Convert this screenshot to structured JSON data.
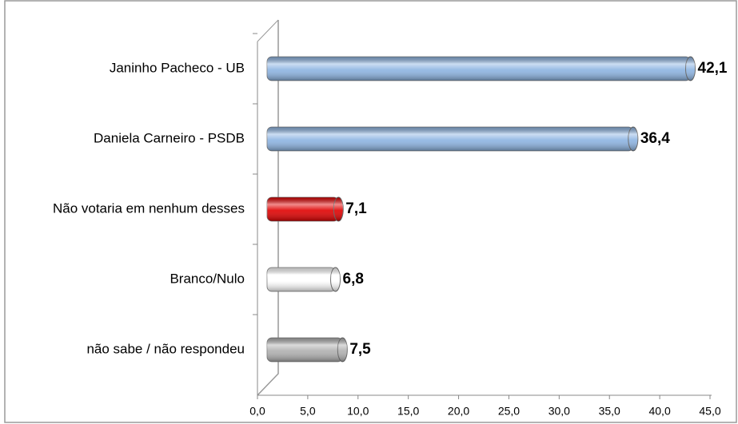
{
  "chart_data": {
    "type": "bar",
    "orientation": "horizontal",
    "categories": [
      "Janinho Pacheco - UB",
      "Daniela Carneiro - PSDB",
      "Não votaria em nenhum desses",
      "Branco/Nulo",
      "não sabe  / não respondeu"
    ],
    "values": [
      42.1,
      36.4,
      7.1,
      6.8,
      7.5
    ],
    "value_labels": [
      "42,1",
      "36,4",
      "7,1",
      "6,8",
      "7,5"
    ],
    "colors": [
      "#8db4e2",
      "#8db4e2",
      "#e00000",
      "#ffffff",
      "#b0b0b0"
    ],
    "xlim": [
      0,
      45
    ],
    "xticks": [
      {
        "value": 0,
        "label": "0,0"
      },
      {
        "value": 5,
        "label": "5,0"
      },
      {
        "value": 10,
        "label": "10,0"
      },
      {
        "value": 15,
        "label": "15,0"
      },
      {
        "value": 20,
        "label": "20,0"
      },
      {
        "value": 25,
        "label": "25,0"
      },
      {
        "value": 30,
        "label": "30,0"
      },
      {
        "value": 35,
        "label": "35,0"
      },
      {
        "value": 40,
        "label": "40,0"
      },
      {
        "value": 45,
        "label": "45,0"
      }
    ],
    "grid": false
  }
}
